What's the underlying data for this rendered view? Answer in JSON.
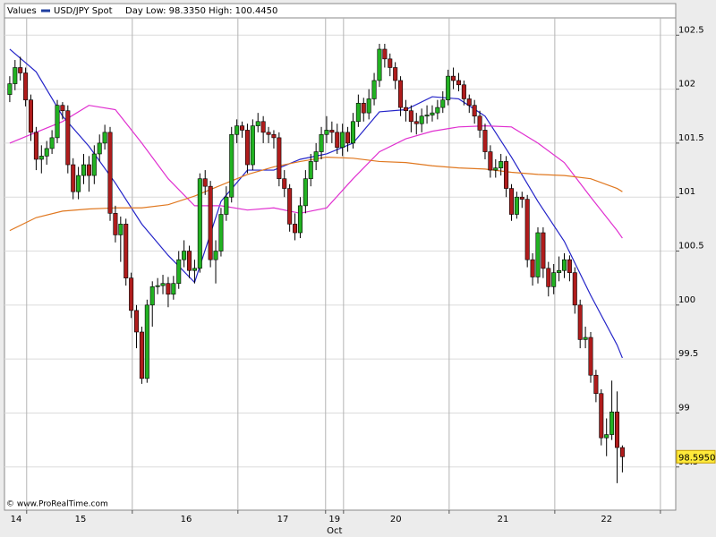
{
  "chart_data": {
    "type": "candlestick",
    "header_label": "Values",
    "subtitle": "Day Low: 98.3350 High: 100.4450",
    "source": "© www.ProRealTime.com",
    "ylim": [
      98.1,
      102.66
    ],
    "yticks": [
      98.5,
      99,
      99.5,
      100,
      100.5,
      101,
      101.5,
      102,
      102.5
    ],
    "xlim": [
      -1,
      126.1
    ],
    "xticks": [
      {
        "value": 1.2,
        "label": "14"
      },
      {
        "value": 13.4,
        "label": "15"
      },
      {
        "value": 33.4,
        "label": "16"
      },
      {
        "value": 51.7,
        "label": "17"
      },
      {
        "value": 61.5,
        "label": "19"
      },
      {
        "value": 73.1,
        "label": "20"
      },
      {
        "value": 93.4,
        "label": "21"
      },
      {
        "value": 113,
        "label": "22"
      }
    ],
    "month_label": {
      "value": 61.5,
      "label": "Oct"
    },
    "xgrid": [
      3.2,
      23.2,
      43.2,
      59.8,
      63.2,
      83.2,
      103.2,
      123.2
    ],
    "grid": true,
    "up_color": "#22b222",
    "down_color": "#b01c1c",
    "last_price": {
      "value": 98.595,
      "label": "98.5950"
    },
    "x": [
      0,
      1,
      2,
      3,
      4,
      5,
      6,
      7,
      8,
      9,
      10,
      11,
      12,
      13,
      14,
      15,
      16,
      17,
      18,
      19,
      20,
      21,
      22,
      23,
      24,
      25,
      26,
      27,
      28,
      29,
      30,
      31,
      32,
      33,
      34,
      35,
      36,
      37,
      38,
      39,
      40,
      41,
      42,
      43,
      44,
      45,
      46,
      47,
      48,
      49,
      50,
      51,
      52,
      53,
      54,
      55,
      56,
      57,
      58,
      59,
      60,
      61,
      62,
      63,
      64,
      65,
      66,
      67,
      68,
      69,
      70,
      71,
      72,
      73,
      74,
      75,
      76,
      77,
      78,
      79,
      80,
      81,
      82,
      83,
      84,
      85,
      86,
      87,
      88,
      89,
      90,
      91,
      92,
      93,
      94,
      95,
      96,
      97,
      98,
      99,
      100,
      101,
      102,
      103,
      104,
      105,
      106,
      107,
      108,
      109,
      110,
      111,
      112,
      113,
      114,
      115,
      116
    ],
    "series": [
      {
        "name": "USD/JPY Spot",
        "color": "#1f3f9f",
        "open": [
          101.95,
          102.05,
          102.2,
          102.15,
          101.9,
          101.6,
          101.35,
          101.38,
          101.45,
          101.55,
          101.85,
          101.8,
          101.3,
          101.05,
          101.2,
          101.3,
          101.2,
          101.4,
          101.5,
          101.6,
          100.85,
          100.65,
          100.75,
          100.25,
          99.95,
          99.75,
          99.32,
          100.0,
          100.17,
          100.18,
          100.2,
          100.1,
          100.2,
          100.42,
          100.5,
          100.32,
          100.34,
          101.17,
          101.1,
          100.42,
          100.5,
          100.84,
          101.0,
          101.58,
          101.66,
          101.62,
          101.3,
          101.66,
          101.7,
          101.6,
          101.58,
          101.55,
          101.17,
          101.08,
          100.75,
          100.67,
          100.92,
          101.17,
          101.33,
          101.42,
          101.58,
          101.62,
          101.6,
          101.46,
          101.6,
          101.5,
          101.7,
          101.87,
          101.78,
          101.91,
          102.08,
          102.37,
          102.28,
          102.2,
          102.08,
          101.83,
          101.8,
          101.7,
          101.68,
          101.75,
          101.76,
          101.78,
          101.83,
          101.9,
          102.12,
          102.08,
          102.04,
          101.91,
          101.85,
          101.75,
          101.62,
          101.42,
          101.25,
          101.27,
          101.33,
          101.08,
          100.84,
          101.0,
          100.98,
          100.42,
          100.26,
          100.67,
          100.34,
          100.17,
          100.3,
          100.32,
          100.42,
          100.3,
          100.0,
          99.68,
          99.7,
          99.35,
          99.18,
          98.77,
          98.8,
          99.01,
          98.68
        ],
        "high": [
          102.12,
          102.27,
          102.3,
          102.2,
          101.95,
          101.65,
          101.48,
          101.52,
          101.62,
          101.9,
          101.88,
          101.85,
          101.36,
          101.28,
          101.4,
          101.38,
          101.48,
          101.58,
          101.67,
          101.65,
          100.92,
          100.82,
          100.8,
          100.3,
          100.0,
          99.8,
          100.05,
          100.22,
          100.25,
          100.28,
          100.26,
          100.27,
          100.5,
          100.6,
          100.55,
          100.42,
          101.22,
          101.25,
          101.15,
          100.6,
          100.9,
          101.1,
          101.65,
          101.72,
          101.7,
          101.68,
          101.72,
          101.78,
          101.75,
          101.65,
          101.62,
          101.6,
          101.25,
          101.12,
          100.85,
          101.0,
          101.25,
          101.4,
          101.5,
          101.65,
          101.75,
          101.7,
          101.68,
          101.68,
          101.65,
          101.78,
          101.95,
          101.92,
          102.0,
          102.15,
          102.42,
          102.42,
          102.33,
          102.25,
          102.12,
          101.9,
          101.85,
          101.78,
          101.82,
          101.85,
          101.85,
          101.9,
          101.98,
          102.18,
          102.2,
          102.15,
          102.08,
          101.95,
          101.9,
          101.8,
          101.68,
          101.48,
          101.35,
          101.4,
          101.38,
          101.12,
          101.05,
          101.05,
          101.02,
          100.48,
          100.72,
          100.72,
          100.4,
          100.38,
          100.45,
          100.48,
          100.46,
          100.35,
          100.05,
          99.8,
          99.75,
          99.4,
          99.22,
          98.95,
          99.3,
          99.2,
          98.7
        ],
        "low": [
          101.88,
          101.99,
          102.08,
          101.84,
          101.52,
          101.25,
          101.22,
          101.3,
          101.4,
          101.5,
          101.72,
          101.22,
          100.98,
          100.98,
          101.12,
          101.05,
          101.12,
          101.33,
          101.44,
          100.78,
          100.58,
          100.4,
          100.18,
          99.88,
          99.6,
          99.27,
          99.28,
          99.8,
          100.1,
          100.1,
          99.98,
          100.05,
          100.15,
          100.35,
          100.25,
          100.2,
          100.3,
          101.02,
          100.35,
          100.2,
          100.45,
          100.78,
          100.95,
          101.5,
          101.55,
          101.22,
          101.25,
          101.6,
          101.5,
          101.5,
          101.45,
          101.1,
          101.0,
          100.68,
          100.6,
          100.62,
          100.85,
          101.1,
          101.25,
          101.35,
          101.5,
          101.5,
          101.4,
          101.38,
          101.42,
          101.45,
          101.65,
          101.7,
          101.72,
          101.85,
          102.02,
          102.2,
          102.12,
          102.0,
          101.75,
          101.7,
          101.6,
          101.58,
          101.6,
          101.68,
          101.7,
          101.72,
          101.78,
          101.85,
          102.0,
          101.98,
          101.85,
          101.78,
          101.68,
          101.55,
          101.35,
          101.18,
          101.18,
          101.2,
          101.0,
          100.78,
          100.8,
          100.9,
          100.35,
          100.18,
          100.2,
          100.25,
          100.08,
          100.1,
          100.22,
          100.25,
          100.22,
          99.92,
          99.6,
          99.6,
          99.28,
          99.1,
          98.7,
          98.6,
          98.75,
          98.35,
          98.45
        ],
        "close": [
          102.05,
          102.2,
          102.15,
          101.9,
          101.6,
          101.35,
          101.38,
          101.45,
          101.55,
          101.85,
          101.8,
          101.3,
          101.05,
          101.2,
          101.3,
          101.2,
          101.4,
          101.5,
          101.6,
          100.85,
          100.65,
          100.75,
          100.25,
          99.95,
          99.75,
          99.32,
          100.0,
          100.17,
          100.18,
          100.2,
          100.1,
          100.2,
          100.42,
          100.5,
          100.32,
          100.34,
          101.17,
          101.1,
          100.42,
          100.5,
          100.84,
          101.0,
          101.58,
          101.66,
          101.62,
          101.3,
          101.66,
          101.7,
          101.6,
          101.58,
          101.55,
          101.17,
          101.08,
          100.75,
          100.67,
          100.92,
          101.17,
          101.33,
          101.42,
          101.58,
          101.62,
          101.6,
          101.46,
          101.6,
          101.5,
          101.7,
          101.87,
          101.78,
          101.91,
          102.08,
          102.37,
          102.28,
          102.2,
          102.08,
          101.83,
          101.8,
          101.7,
          101.68,
          101.75,
          101.76,
          101.78,
          101.83,
          101.9,
          102.12,
          102.08,
          102.04,
          101.91,
          101.85,
          101.75,
          101.62,
          101.42,
          101.25,
          101.27,
          101.33,
          101.08,
          100.84,
          101.0,
          100.98,
          100.42,
          100.26,
          100.67,
          100.34,
          100.17,
          100.3,
          100.32,
          100.42,
          100.3,
          100.0,
          99.68,
          99.7,
          99.35,
          99.18,
          98.77,
          98.8,
          99.01,
          98.68,
          98.595
        ]
      }
    ],
    "ma_lines": [
      {
        "color": "#2424c8",
        "x": [
          0,
          5,
          10,
          15,
          20,
          25,
          30,
          35,
          40,
          45,
          50,
          55,
          60,
          65,
          70,
          75,
          80,
          85,
          90,
          95,
          100,
          105,
          110,
          115,
          116
        ],
        "values": [
          102.37,
          102.16,
          101.75,
          101.47,
          101.13,
          100.75,
          100.46,
          100.21,
          100.96,
          101.25,
          101.25,
          101.35,
          101.4,
          101.5,
          101.79,
          101.81,
          101.93,
          101.91,
          101.75,
          101.37,
          100.96,
          100.59,
          100.09,
          99.63,
          99.51
        ]
      },
      {
        "color": "#e030d0",
        "x": [
          0,
          5,
          10,
          15,
          20,
          25,
          30,
          35,
          40,
          45,
          50,
          55,
          60,
          65,
          70,
          75,
          80,
          85,
          90,
          95,
          100,
          105,
          110,
          115,
          116
        ],
        "values": [
          101.5,
          101.6,
          101.7,
          101.85,
          101.81,
          101.5,
          101.17,
          100.92,
          100.92,
          100.88,
          100.9,
          100.85,
          100.9,
          101.17,
          101.42,
          101.54,
          101.61,
          101.65,
          101.66,
          101.65,
          101.5,
          101.32,
          101.0,
          100.69,
          100.62
        ]
      },
      {
        "color": "#e07820",
        "x": [
          0,
          5,
          10,
          15,
          20,
          25,
          30,
          35,
          40,
          45,
          50,
          55,
          60,
          65,
          70,
          75,
          80,
          85,
          90,
          95,
          100,
          105,
          110,
          115,
          116
        ],
        "values": [
          100.69,
          100.81,
          100.87,
          100.89,
          100.9,
          100.9,
          100.93,
          101.01,
          101.11,
          101.21,
          101.28,
          101.33,
          101.37,
          101.36,
          101.33,
          101.32,
          101.29,
          101.27,
          101.26,
          101.23,
          101.21,
          101.2,
          101.17,
          101.08,
          101.05
        ]
      }
    ]
  }
}
